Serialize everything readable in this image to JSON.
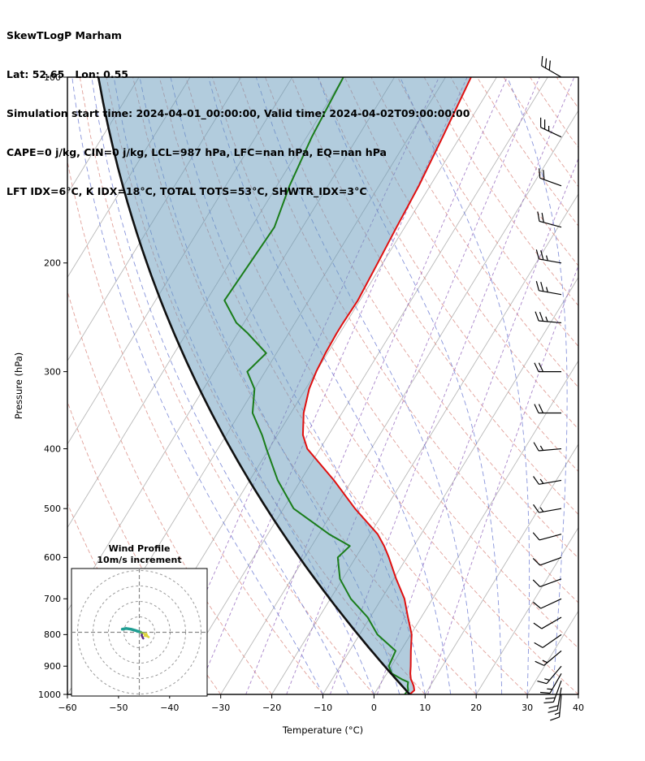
{
  "header": {
    "title": "SkewTLogP Marham",
    "location": "Lat: 52.65   Lon: 0.55",
    "times": "Simulation start time: 2024-04-01_00:00:00, Valid time: 2024-04-02T09:00:00:00",
    "stability": "CAPE=0 j/kg, CIN=0 j/kg, LCL=987 hPa, LFC=nan hPa, EQ=nan hPa",
    "indices": "LFT IDX=6°C, K IDX=18°C, TOTAL TOTS=53°C, SHWTR_IDX=3°C"
  },
  "chart_data": {
    "type": "skewt-logp",
    "station": "Marham",
    "xlabel": "Temperature (°C)",
    "ylabel": "Pressure (hPa)",
    "xlim": [
      -60,
      40
    ],
    "pressure_lim": [
      1000,
      100
    ],
    "x_ticks": [
      -60,
      -50,
      -40,
      -30,
      -20,
      -10,
      0,
      10,
      20,
      30,
      40
    ],
    "pressure_ticks": [
      100,
      200,
      300,
      400,
      500,
      600,
      700,
      800,
      900,
      1000
    ],
    "skew_shift_c_per_decade": 74,
    "sounding": {
      "pressure_hpa": [
        1000,
        985,
        970,
        955,
        945,
        925,
        900,
        850,
        800,
        750,
        700,
        650,
        600,
        575,
        550,
        500,
        450,
        400,
        380,
        350,
        320,
        300,
        280,
        260,
        250,
        230,
        200,
        175,
        150,
        125,
        100
      ],
      "temperature_c": [
        7.0,
        7.4,
        6.8,
        6.0,
        5.4,
        4.6,
        3.8,
        2.0,
        0.2,
        -2.6,
        -5.5,
        -9.5,
        -13.5,
        -15.8,
        -18.5,
        -26.0,
        -33.5,
        -42.5,
        -45.0,
        -47.5,
        -49.3,
        -50.0,
        -50.4,
        -50.6,
        -50.6,
        -50.4,
        -51.0,
        -51.6,
        -52.2,
        -53.4,
        -55.0
      ],
      "dewpoint_c": [
        6.0,
        6.2,
        5.6,
        5.2,
        3.6,
        1.0,
        -0.5,
        -1.0,
        -6.5,
        -10.5,
        -16.0,
        -20.5,
        -23.5,
        -22.5,
        -28.0,
        -38.0,
        -44.5,
        -50.5,
        -53.0,
        -57.5,
        -60.0,
        -63.5,
        -62.0,
        -68.0,
        -71.5,
        -76.5,
        -76.0,
        -75.5,
        -77.5,
        -79.0,
        -80.0
      ]
    },
    "parcel": {
      "kind": "dry-adiabat-from-surface",
      "surface_pressure_hpa": 1000,
      "surface_temperature_c": 7.0,
      "lcl_hpa": 987
    },
    "winds": {
      "pressure_hpa": [
        100,
        125,
        150,
        175,
        200,
        225,
        250,
        300,
        350,
        400,
        450,
        500,
        550,
        600,
        650,
        700,
        750,
        800,
        850,
        900,
        925,
        950,
        975,
        1000
      ],
      "direction_deg": [
        300,
        295,
        290,
        285,
        280,
        280,
        275,
        270,
        270,
        265,
        260,
        260,
        255,
        250,
        250,
        245,
        240,
        235,
        230,
        220,
        210,
        200,
        190,
        185
      ],
      "speed_kt": [
        30,
        25,
        20,
        20,
        25,
        25,
        25,
        20,
        20,
        15,
        15,
        15,
        10,
        10,
        10,
        10,
        10,
        10,
        15,
        15,
        15,
        20,
        20,
        15
      ]
    },
    "background": {
      "isotherms_c": {
        "min": -120,
        "max": 40,
        "step": 10
      },
      "dry_adiabats_theta_c": {
        "min": -40,
        "max": 240,
        "step": 10
      },
      "moist_adiabats_t0_c": {
        "min": -10,
        "max": 45,
        "step": 5
      },
      "mixing_ratio_g_kg": [
        0.1,
        0.2,
        0.5,
        1,
        2,
        4,
        8
      ]
    },
    "colors": {
      "temperature": "#e01010",
      "dewpoint": "#1a7d1a",
      "parcel": "#101010",
      "shade": "#6699bb",
      "isotherm": "#b8b8b8",
      "dry_adiabat": "#d98880",
      "moist_adiabat": "#5566cc",
      "mixing_ratio": "#9467bd",
      "barb": "#000000",
      "frame": "#000000"
    },
    "inset": {
      "title_line1": "Wind Profile",
      "title_line2": "10m/s increment",
      "ring_step_ms": 10,
      "rings_ms": [
        10,
        20,
        30,
        40
      ],
      "trace": [
        {
          "color": "#5b2d86",
          "width": 2.5,
          "points_uv": [
            [
              2.5,
              -4.0
            ],
            [
              1.5,
              -2.0
            ],
            [
              2.0,
              -0.5
            ],
            [
              1.0,
              0.0
            ]
          ]
        },
        {
          "color": "#1f9e93",
          "width": 3.5,
          "points_uv": [
            [
              1.0,
              0.0
            ],
            [
              -2.0,
              1.0
            ],
            [
              -5.5,
              2.0
            ],
            [
              -8.5,
              2.5
            ],
            [
              -11.0,
              2.0
            ]
          ]
        },
        {
          "color": "#7ab648",
          "width": 2.5,
          "points_uv": [
            [
              1.0,
              0.0
            ],
            [
              2.5,
              -0.5
            ],
            [
              4.0,
              -1.5
            ]
          ]
        }
      ],
      "arrow": {
        "color": "#ddd43e",
        "from_uv": [
          2.5,
          -0.5
        ],
        "to_uv": [
          6.5,
          -3.5
        ]
      }
    }
  }
}
